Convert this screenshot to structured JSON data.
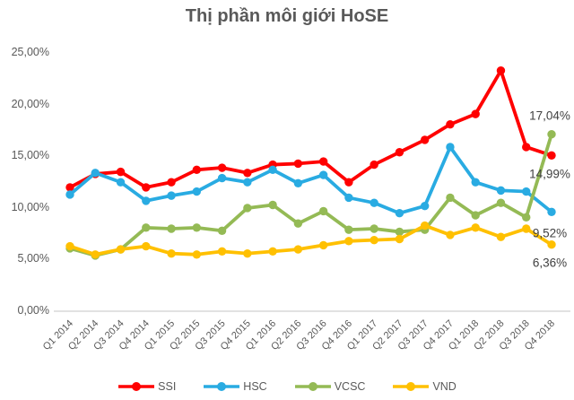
{
  "chart_data": {
    "type": "line",
    "title": "Thị phần môi giới HoSE",
    "categories": [
      "Q1 2014",
      "Q2 2014",
      "Q3 2014",
      "Q4 2014",
      "Q1 2015",
      "Q2 2015",
      "Q3 2015",
      "Q4 2015",
      "Q1 2016",
      "Q2 2016",
      "Q3 2016",
      "Q4 2016",
      "Q1 2017",
      "Q2 2017",
      "Q3 2017",
      "Q4 2017",
      "Q1 2018",
      "Q2 2018",
      "Q3 2018",
      "Q4 2018"
    ],
    "series": [
      {
        "name": "SSI",
        "color": "#FF0000",
        "values": [
          11.9,
          13.2,
          13.4,
          11.9,
          12.4,
          13.6,
          13.8,
          13.3,
          14.1,
          14.2,
          14.4,
          12.4,
          14.1,
          15.3,
          16.5,
          18.0,
          19.0,
          23.2,
          15.8,
          14.99
        ],
        "end_label": "14,99%"
      },
      {
        "name": "HSC",
        "color": "#29ABE2",
        "values": [
          11.2,
          13.3,
          12.4,
          10.6,
          11.1,
          11.5,
          12.8,
          12.4,
          13.6,
          12.3,
          13.1,
          10.9,
          10.4,
          9.4,
          10.1,
          15.8,
          12.4,
          11.6,
          11.5,
          9.52
        ],
        "end_label": "9,52%"
      },
      {
        "name": "VCSC",
        "color": "#94BA55",
        "values": [
          6.0,
          5.3,
          5.9,
          8.0,
          7.9,
          8.0,
          7.7,
          9.9,
          10.2,
          8.4,
          9.6,
          7.8,
          7.9,
          7.6,
          7.8,
          10.9,
          9.2,
          10.4,
          9.0,
          17.04
        ],
        "end_label": "17,04%"
      },
      {
        "name": "VND",
        "color": "#FFC000",
        "values": [
          6.2,
          5.4,
          5.9,
          6.2,
          5.5,
          5.4,
          5.7,
          5.5,
          5.7,
          5.9,
          6.3,
          6.7,
          6.8,
          6.9,
          8.2,
          7.3,
          8.0,
          7.1,
          7.9,
          6.36
        ],
        "end_label": "6,36%"
      }
    ],
    "y_axis": {
      "tick_labels": [
        "0,00%",
        "5,00%",
        "10,00%",
        "15,00%",
        "20,00%",
        "25,00%"
      ],
      "tick_values": [
        0,
        5,
        10,
        15,
        20,
        25
      ],
      "min": 0,
      "max": 25
    },
    "grid": false,
    "legend_position": "bottom"
  },
  "colors": {
    "text": "#595959",
    "axis_line": "#D9D9D9",
    "data_label": "#404040",
    "background": "#FFFFFF"
  }
}
